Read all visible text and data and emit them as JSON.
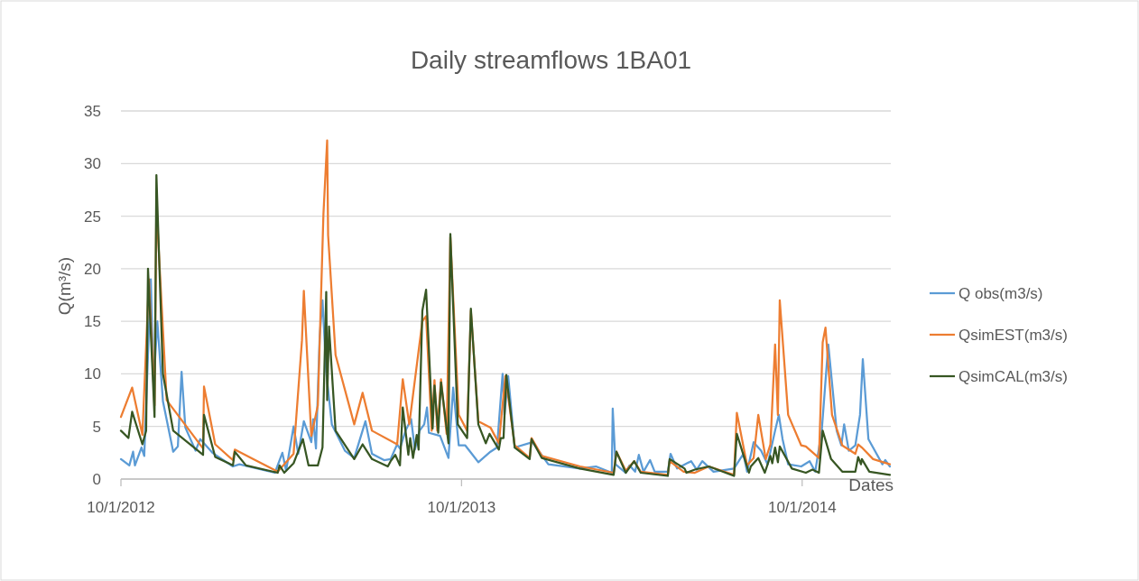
{
  "chart_data": {
    "type": "line",
    "title": "Daily streamflows 1BA01",
    "xlabel": "Dates",
    "ylabel": "Q(m³/s)",
    "xlim": [
      "2012-10-01",
      "2015-01-04"
    ],
    "xticks": [
      {
        "value": "2012-10-01",
        "label": "10/1/2012"
      },
      {
        "value": "2013-10-01",
        "label": "10/1/2013"
      },
      {
        "value": "2014-10-01",
        "label": "10/1/2014"
      }
    ],
    "ylim": [
      0,
      35
    ],
    "yticks": [
      0,
      5,
      10,
      15,
      20,
      25,
      30,
      35
    ],
    "grid": "y",
    "legend": "right",
    "marker": "none",
    "line_style": "solid",
    "series": [
      {
        "name": "Q obs(m3/s)",
        "color": "#5b9bd5",
        "x": [
          "2012-10-01",
          "2012-10-10",
          "2012-10-14",
          "2012-10-16",
          "2012-10-23",
          "2012-10-26",
          "2012-11-02",
          "2012-11-05",
          "2012-11-09",
          "2012-11-15",
          "2012-11-26",
          "2012-12-01",
          "2012-12-05",
          "2012-12-09",
          "2012-12-20",
          "2012-12-25",
          "2013-01-07",
          "2013-01-29",
          "2013-02-05",
          "2013-03-15",
          "2013-03-23",
          "2013-03-27",
          "2013-04-04",
          "2013-04-09",
          "2013-04-15",
          "2013-04-23",
          "2013-04-25",
          "2013-04-28",
          "2013-05-02",
          "2013-05-05",
          "2013-05-09",
          "2013-05-15",
          "2013-05-29",
          "2013-06-08",
          "2013-06-20",
          "2013-06-27",
          "2013-07-10",
          "2013-07-17",
          "2013-07-24",
          "2013-07-27",
          "2013-08-02",
          "2013-08-08",
          "2013-08-12",
          "2013-08-17",
          "2013-08-22",
          "2013-08-25",
          "2013-08-27",
          "2013-09-08",
          "2013-09-17",
          "2013-09-22",
          "2013-09-28",
          "2013-10-05",
          "2013-10-12",
          "2013-10-19",
          "2013-11-01",
          "2013-11-08",
          "2013-11-14",
          "2013-11-16",
          "2013-11-20",
          "2013-11-27",
          "2013-12-16",
          "2014-01-02",
          "2014-02-05",
          "2014-02-22",
          "2014-03-11",
          "2014-03-12",
          "2014-03-15",
          "2014-03-26",
          "2014-03-30",
          "2014-04-05",
          "2014-04-09",
          "2014-04-14",
          "2014-04-21",
          "2014-04-26",
          "2014-05-10",
          "2014-05-13",
          "2014-05-20",
          "2014-06-04",
          "2014-06-10",
          "2014-06-16",
          "2014-06-28",
          "2014-07-20",
          "2014-07-30",
          "2014-08-03",
          "2014-08-10",
          "2014-08-18",
          "2014-08-25",
          "2014-09-02",
          "2014-09-06",
          "2014-09-10",
          "2014-09-16",
          "2014-09-30",
          "2014-10-09",
          "2014-10-15",
          "2014-10-22",
          "2014-10-29",
          "2014-11-07",
          "2014-11-12",
          "2014-11-15",
          "2014-11-20",
          "2014-11-27",
          "2014-12-02",
          "2014-12-05",
          "2014-12-11",
          "2014-12-26",
          "2014-12-29",
          "2015-01-03"
        ],
        "values": [
          1.9,
          1.3,
          2.6,
          1.3,
          3.0,
          2.2,
          19,
          8.9,
          15,
          7.4,
          2.6,
          3.1,
          10.2,
          4.9,
          2.7,
          3.8,
          2.5,
          1.2,
          1.4,
          0.6,
          2.5,
          0.8,
          5.0,
          2.4,
          5.5,
          3.5,
          5.7,
          2.9,
          13.6,
          17,
          10.2,
          5.2,
          2.7,
          2.0,
          5.5,
          2.4,
          1.8,
          1.9,
          3.3,
          2.9,
          4.6,
          5.7,
          2.8,
          4.6,
          5.2,
          6.8,
          4.4,
          4.1,
          2.0,
          8.7,
          3.2,
          3.2,
          2.4,
          1.6,
          2.6,
          3.0,
          10,
          6.1,
          9.8,
          3.0,
          3.5,
          1.4,
          1.0,
          1.2,
          0.6,
          6.7,
          1.4,
          0.6,
          1.3,
          0.7,
          2.3,
          0.7,
          1.8,
          0.7,
          0.7,
          2.4,
          1.0,
          1.7,
          0.9,
          1.7,
          0.7,
          1.0,
          2.4,
          0.7,
          3.5,
          2.7,
          1.4,
          4.6,
          6.1,
          3.8,
          1.4,
          1.2,
          1.7,
          0.7,
          4.6,
          12.8,
          4.6,
          3.2,
          5.2,
          2.7,
          3.2,
          6.1,
          11.4,
          3.8,
          1.4,
          1.8,
          1.2
        ]
      },
      {
        "name": "QsimEST(m3/s)",
        "color": "#ed7d31",
        "x": [
          "2012-10-01",
          "2012-10-13",
          "2012-10-24",
          "2012-10-31",
          "2012-11-06",
          "2012-11-08",
          "2012-11-19",
          "2012-12-28",
          "2012-12-29",
          "2013-01-10",
          "2013-01-29",
          "2013-01-31",
          "2013-03-18",
          "2013-04-04",
          "2013-04-13",
          "2013-04-15",
          "2013-04-23",
          "2013-04-30",
          "2013-05-06",
          "2013-05-10",
          "2013-05-11",
          "2013-05-19",
          "2013-06-08",
          "2013-06-17",
          "2013-06-27",
          "2013-07-24",
          "2013-07-30",
          "2013-08-06",
          "2013-08-20",
          "2013-08-24",
          "2013-08-30",
          "2013-09-02",
          "2013-09-05",
          "2013-09-09",
          "2013-09-15",
          "2013-09-19",
          "2013-09-28",
          "2013-10-07",
          "2013-10-11",
          "2013-10-19",
          "2013-11-01",
          "2013-11-10",
          "2013-11-17",
          "2013-11-27",
          "2013-12-13",
          "2013-12-15",
          "2013-12-26",
          "2014-02-05",
          "2014-03-13",
          "2014-03-16",
          "2014-03-26",
          "2014-04-04",
          "2014-04-11",
          "2014-05-10",
          "2014-05-12",
          "2014-05-27",
          "2014-06-08",
          "2014-06-23",
          "2014-07-20",
          "2014-07-23",
          "2014-08-03",
          "2014-08-10",
          "2014-08-15",
          "2014-08-23",
          "2014-08-28",
          "2014-09-02",
          "2014-09-05",
          "2014-09-07",
          "2014-09-16",
          "2014-09-30",
          "2014-10-05",
          "2014-10-19",
          "2014-10-23",
          "2014-10-26",
          "2014-11-02",
          "2014-11-13",
          "2014-11-27",
          "2014-11-30",
          "2014-12-04",
          "2014-12-16",
          "2015-01-03"
        ],
        "values": [
          5.9,
          8.7,
          4.2,
          19,
          7,
          26,
          7.5,
          2.9,
          8.8,
          3.3,
          1.8,
          2.8,
          0.7,
          2.4,
          13.2,
          17.9,
          4.1,
          7,
          25.2,
          32.2,
          23.2,
          11.8,
          5.2,
          8.2,
          4.6,
          3.3,
          9.5,
          5.2,
          15,
          15.5,
          4.6,
          9.4,
          4.6,
          9.5,
          4.3,
          23,
          6.1,
          4.6,
          16,
          5.5,
          4.9,
          3.4,
          9.8,
          3.2,
          2.0,
          3.9,
          2.2,
          1.2,
          0.6,
          2.6,
          0.8,
          1.7,
          0.7,
          0.4,
          1.7,
          0.7,
          0.6,
          1.2,
          0.4,
          6.3,
          1.3,
          2.0,
          6.1,
          1.9,
          3.3,
          12.8,
          6.1,
          17,
          6.1,
          3.2,
          3.1,
          2.0,
          13,
          14.4,
          6.1,
          3.2,
          2.4,
          3.3,
          3.0,
          1.9,
          1.4
        ]
      },
      {
        "name": "QsimCAL(m3/s)",
        "color": "#375623",
        "x": [
          "2012-10-01",
          "2012-10-09",
          "2012-10-13",
          "2012-10-24",
          "2012-10-28",
          "2012-10-30",
          "2012-11-06",
          "2012-11-08",
          "2012-11-15",
          "2012-11-26",
          "2012-12-28",
          "2012-12-29",
          "2013-01-10",
          "2013-01-29",
          "2013-01-31",
          "2013-02-12",
          "2013-03-18",
          "2013-03-20",
          "2013-03-25",
          "2013-04-04",
          "2013-04-14",
          "2013-04-20",
          "2013-04-30",
          "2013-05-05",
          "2013-05-09",
          "2013-05-10",
          "2013-05-12",
          "2013-05-19",
          "2013-06-08",
          "2013-06-17",
          "2013-06-27",
          "2013-07-14",
          "2013-07-17",
          "2013-07-22",
          "2013-07-27",
          "2013-07-30",
          "2013-08-05",
          "2013-08-07",
          "2013-08-10",
          "2013-08-14",
          "2013-08-16",
          "2013-08-20",
          "2013-08-24",
          "2013-08-31",
          "2013-09-02",
          "2013-09-06",
          "2013-09-09",
          "2013-09-17",
          "2013-09-19",
          "2013-09-27",
          "2013-10-07",
          "2013-10-11",
          "2013-10-19",
          "2013-10-27",
          "2013-10-31",
          "2013-11-10",
          "2013-11-12",
          "2013-11-15",
          "2013-11-18",
          "2013-11-27",
          "2013-12-13",
          "2013-12-15",
          "2013-12-26",
          "2014-02-05",
          "2014-03-13",
          "2014-03-16",
          "2014-03-26",
          "2014-04-04",
          "2014-04-11",
          "2014-05-10",
          "2014-05-12",
          "2014-05-28",
          "2014-05-30",
          "2014-06-08",
          "2014-06-23",
          "2014-07-20",
          "2014-07-23",
          "2014-08-05",
          "2014-08-07",
          "2014-08-15",
          "2014-08-22",
          "2014-08-28",
          "2014-08-30",
          "2014-09-02",
          "2014-09-05",
          "2014-09-07",
          "2014-09-20",
          "2014-10-05",
          "2014-10-12",
          "2014-10-19",
          "2014-10-23",
          "2014-11-01",
          "2014-11-13",
          "2014-11-27",
          "2014-11-30",
          "2014-12-03",
          "2014-12-04",
          "2014-12-12",
          "2015-01-03"
        ],
        "values": [
          4.6,
          3.9,
          6.4,
          3.3,
          4.6,
          20,
          5.9,
          28.9,
          10,
          4.6,
          2.3,
          6.1,
          2.1,
          1.3,
          2.6,
          1.3,
          0.6,
          1.3,
          0.6,
          1.5,
          3.8,
          1.3,
          1.3,
          3.0,
          17.8,
          7.5,
          14.5,
          4.6,
          1.9,
          3.3,
          1.9,
          1.2,
          1.7,
          2.3,
          1.3,
          6.8,
          2.3,
          3.9,
          2.0,
          4.2,
          2.8,
          16,
          18,
          4.8,
          8.9,
          4.4,
          9.2,
          3.4,
          23.3,
          5.2,
          3.9,
          16.2,
          5.2,
          3.4,
          4.3,
          2.8,
          3.9,
          3.9,
          9.9,
          3.0,
          1.9,
          3.8,
          2.0,
          1.0,
          0.4,
          2.6,
          0.6,
          1.7,
          0.6,
          0.3,
          1.9,
          1.0,
          0.6,
          0.9,
          1.2,
          0.3,
          4.3,
          0.6,
          1.2,
          2.0,
          0.6,
          2.2,
          1.5,
          3.0,
          1.6,
          3.1,
          1.0,
          0.6,
          0.9,
          0.6,
          4.6,
          1.9,
          0.7,
          0.7,
          2.1,
          1.4,
          1.9,
          0.7,
          0.4
        ]
      }
    ]
  }
}
